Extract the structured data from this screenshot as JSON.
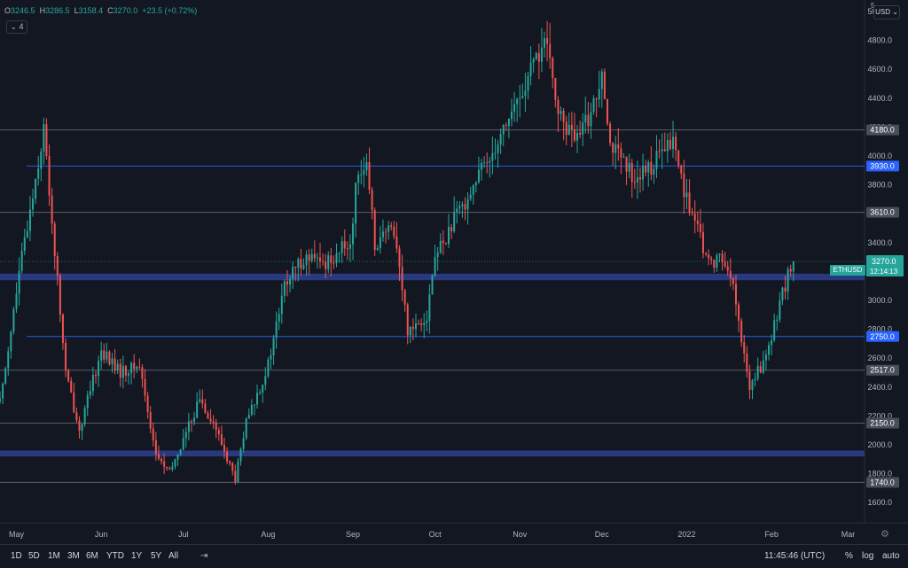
{
  "legend": {
    "o_label": "O",
    "o": "3246.5",
    "h_label": "H",
    "h": "3286.5",
    "l_label": "L",
    "l": "3158.4",
    "c_label": "C",
    "c": "3270.0",
    "change": "+23.5 (+0.72%)"
  },
  "collapse": {
    "label": "4"
  },
  "corner": {
    "label": "5"
  },
  "currency": {
    "label": "USD"
  },
  "chart_data": {
    "type": "candlestick",
    "symbol": "ETHUSD",
    "last_price": "3270.0",
    "countdown": "12:14:13",
    "y_ticks": [
      1600,
      1800,
      2000,
      2200,
      2400,
      2600,
      2800,
      3000,
      3200,
      3400,
      3600,
      3800,
      4000,
      4200,
      4400,
      4600,
      4800,
      5000
    ],
    "ylim": [
      1460,
      5080
    ],
    "x_labels": [
      "May",
      "Jun",
      "Jul",
      "Aug",
      "Sep",
      "Oct",
      "Nov",
      "Dec",
      "2022",
      "Feb",
      "Mar"
    ],
    "x_range": [
      "2021-04-25",
      "2022-03-07"
    ],
    "levels": [
      {
        "value": 4180,
        "label": "4180.0",
        "color": "#787b86",
        "highlight": false
      },
      {
        "value": 3930,
        "label": "3930.0",
        "color": "#2962ff",
        "highlight": true
      },
      {
        "value": 3610,
        "label": "3610.0",
        "color": "#787b86",
        "highlight": false
      },
      {
        "value": 2750,
        "label": "2750.0",
        "color": "#2962ff",
        "highlight": true
      },
      {
        "value": 2517,
        "label": "2517.0",
        "color": "#787b86",
        "highlight": false
      },
      {
        "value": 2150,
        "label": "2150.0",
        "color": "#787b86",
        "highlight": false
      },
      {
        "value": 1740,
        "label": "1740.0",
        "color": "#787b86",
        "highlight": false
      }
    ],
    "zones": [
      {
        "from": 3140,
        "to": 3185
      },
      {
        "from": 1920,
        "to": 1960
      }
    ],
    "waypoints": [
      [
        "2021-04-25",
        2300
      ],
      [
        "2021-05-03",
        3300
      ],
      [
        "2021-05-11",
        4180
      ],
      [
        "2021-05-19",
        2500
      ],
      [
        "2021-05-24",
        2100
      ],
      [
        "2021-06-01",
        2650
      ],
      [
        "2021-06-08",
        2500
      ],
      [
        "2021-06-15",
        2550
      ],
      [
        "2021-06-21",
        1930
      ],
      [
        "2021-06-26",
        1800
      ],
      [
        "2021-07-07",
        2320
      ],
      [
        "2021-07-12",
        2150
      ],
      [
        "2021-07-20",
        1760
      ],
      [
        "2021-07-24",
        2150
      ],
      [
        "2021-08-01",
        2550
      ],
      [
        "2021-08-07",
        3100
      ],
      [
        "2021-08-14",
        3300
      ],
      [
        "2021-08-21",
        3250
      ],
      [
        "2021-08-31",
        3400
      ],
      [
        "2021-09-03",
        3930
      ],
      [
        "2021-09-06",
        3900
      ],
      [
        "2021-09-09",
        3400
      ],
      [
        "2021-09-16",
        3500
      ],
      [
        "2021-09-21",
        2800
      ],
      [
        "2021-09-28",
        2900
      ],
      [
        "2021-10-01",
        3300
      ],
      [
        "2021-10-15",
        3800
      ],
      [
        "2021-10-21",
        4000
      ],
      [
        "2021-10-26",
        4200
      ],
      [
        "2021-11-01",
        4400
      ],
      [
        "2021-11-10",
        4800
      ],
      [
        "2021-11-16",
        4250
      ],
      [
        "2021-11-22",
        4100
      ],
      [
        "2021-11-29",
        4400
      ],
      [
        "2021-12-01",
        4650
      ],
      [
        "2021-12-04",
        4100
      ],
      [
        "2021-12-10",
        3900
      ],
      [
        "2021-12-15",
        3850
      ],
      [
        "2021-12-27",
        4100
      ],
      [
        "2022-01-01",
        3700
      ],
      [
        "2022-01-09",
        3250
      ],
      [
        "2022-01-13",
        3300
      ],
      [
        "2022-01-17",
        3200
      ],
      [
        "2022-01-22",
        2600
      ],
      [
        "2022-01-24",
        2400
      ],
      [
        "2022-01-31",
        2650
      ],
      [
        "2022-02-04",
        3000
      ],
      [
        "2022-02-09",
        3270
      ]
    ]
  },
  "timeframes": [
    "1D",
    "5D",
    "1M",
    "3M",
    "6M",
    "YTD",
    "1Y",
    "5Y",
    "All"
  ],
  "footer": {
    "time": "11:45:46 (UTC)",
    "percent": "%",
    "log": "log",
    "auto": "auto"
  }
}
